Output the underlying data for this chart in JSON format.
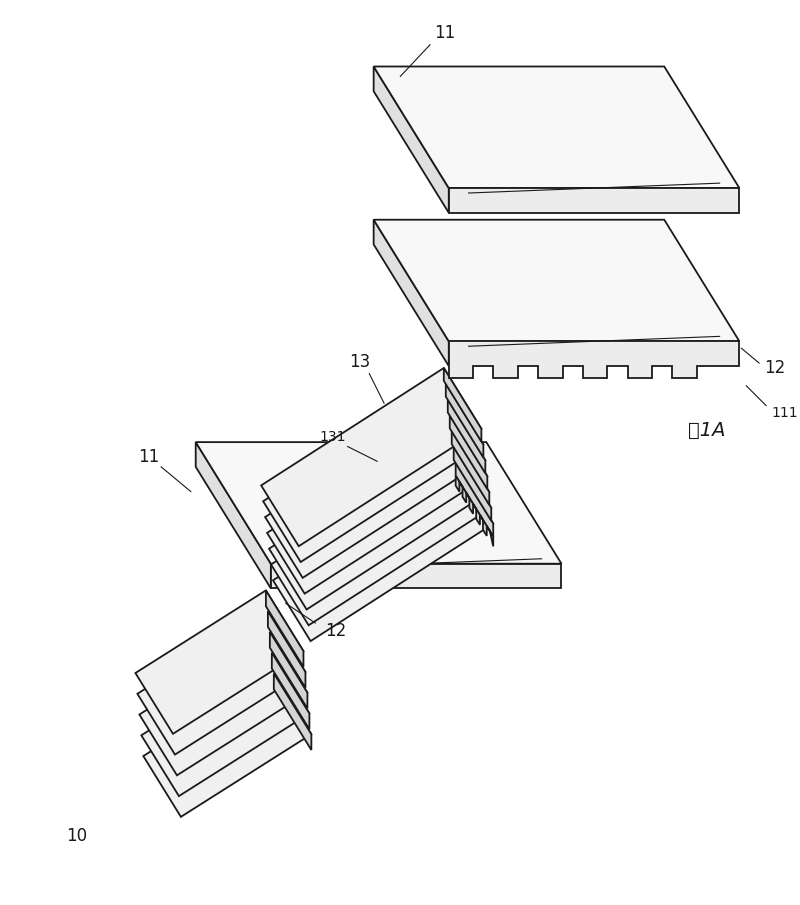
{
  "bg_color": "#ffffff",
  "line_color": "#1a1a1a",
  "line_width": 1.3,
  "thin_line": 0.8,
  "fig_label": "图1A",
  "label_10": "10",
  "label_11": "11",
  "label_12": "12",
  "label_13": "13",
  "label_111": "111",
  "label_131": "131",
  "plate_fc": "#f8f8f8",
  "plate_side_fc": "#e0e0e0",
  "plate_front_fc": "#ececec",
  "strip_top_fc": "#f0f0f0",
  "strip_front_fc": "#d5d5d5",
  "strip_right_fc": "#e5e5e5"
}
